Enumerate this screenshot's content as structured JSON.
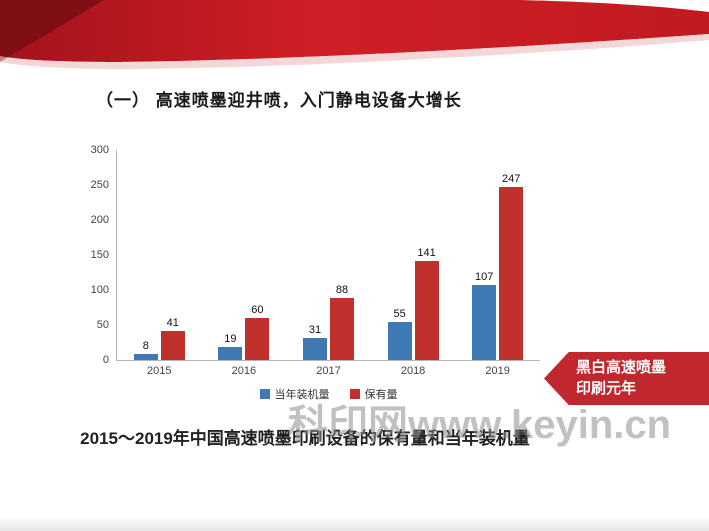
{
  "slide": {
    "title": "（一） 高速喷墨迎井喷，入门静电设备大增长",
    "caption": "2015～2019年中国高速喷墨印刷设备的保有量和当年装机量",
    "watermark": "科印网www.keyin.cn",
    "callout": {
      "line1": "黑白高速喷墨",
      "line2": "印刷元年"
    }
  },
  "chart_data": {
    "type": "bar",
    "title": "2015～2019年中国高速喷墨印刷设备的保有量和当年装机量",
    "categories": [
      "2015",
      "2016",
      "2017",
      "2018",
      "2019"
    ],
    "series": [
      {
        "name": "当年装机量",
        "color": "#3e79b6",
        "values": [
          8,
          19,
          31,
          55,
          107
        ]
      },
      {
        "name": "保有量",
        "color": "#c0312d",
        "values": [
          41,
          60,
          88,
          141,
          247
        ]
      }
    ],
    "xlabel": "",
    "ylabel": "",
    "ylim": [
      0,
      300
    ],
    "yticks": [
      0,
      50,
      100,
      150,
      200,
      250,
      300
    ],
    "grid": false,
    "legend_position": "bottom",
    "data_labels": true
  },
  "colors": {
    "banner_red": "#c01a20",
    "banner_dark_red": "#7e0e14",
    "callout_red": "#c1272d",
    "bar_blue": "#3e79b6",
    "bar_red": "#c0312d"
  }
}
